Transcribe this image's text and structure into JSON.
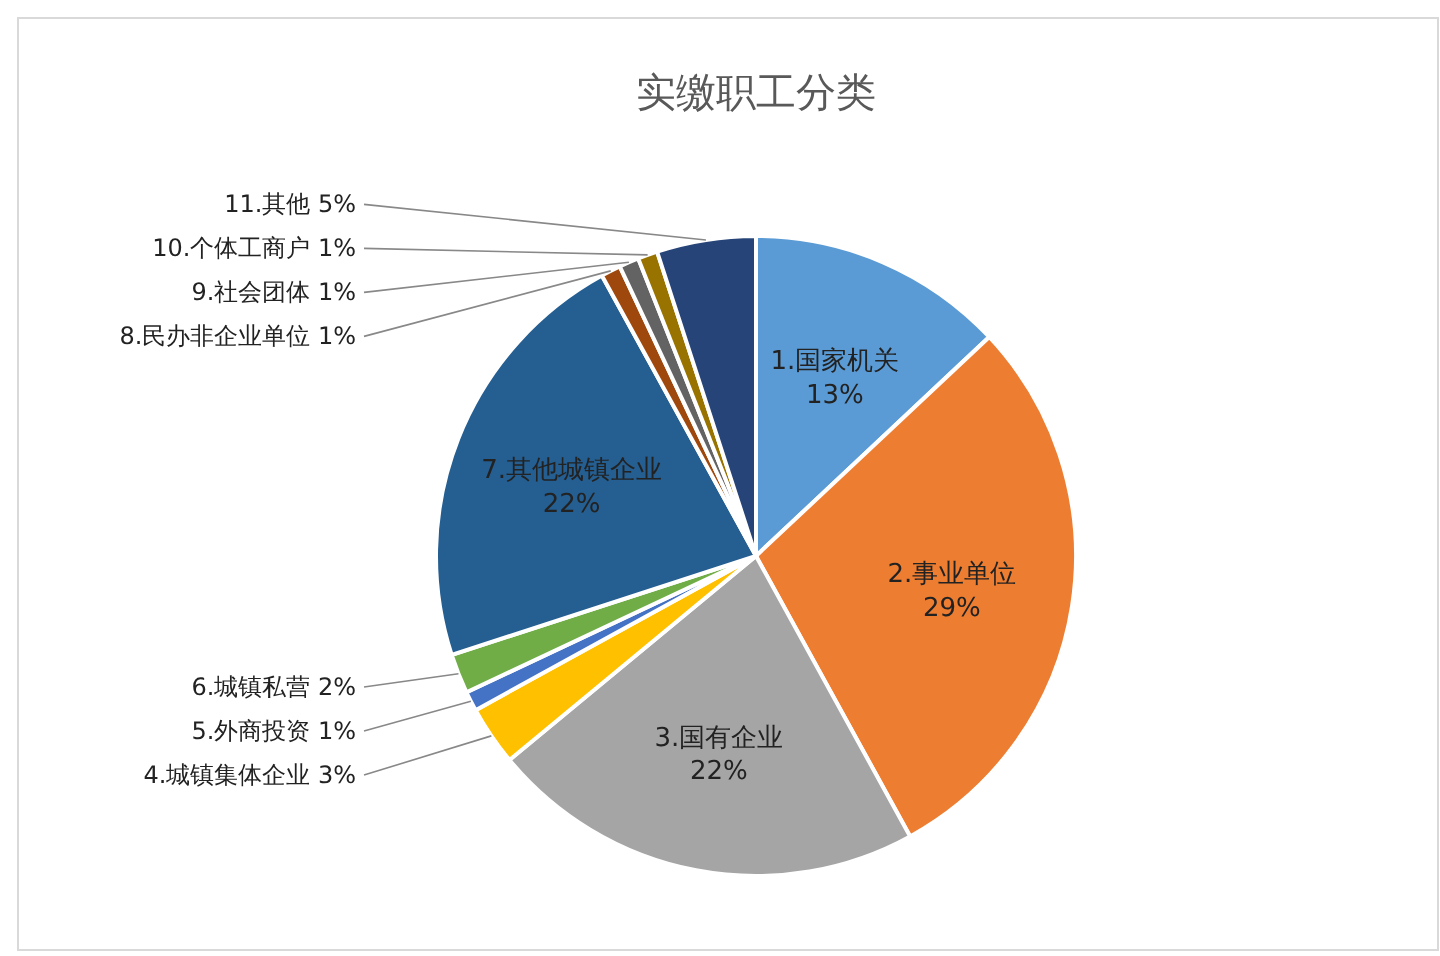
{
  "chart_data": {
    "type": "pie",
    "title": "实缴职工分类",
    "categories": [
      "1.国家机关",
      "2.事业单位",
      "3.国有企业",
      "4.城镇集体企业",
      "5.外商投资",
      "6.城镇私营",
      "7.其他城镇企业",
      "8.民办非企业单位",
      "9.社会团体",
      "10.个体工商户",
      "11.其他"
    ],
    "values": [
      13,
      29,
      22,
      3,
      1,
      2,
      22,
      1,
      1,
      1,
      5
    ],
    "colors": [
      "#5b9bd5",
      "#ed7d31",
      "#a5a5a5",
      "#ffc000",
      "#4472c4",
      "#70ad47",
      "#255e91",
      "#9e480e",
      "#636363",
      "#997300",
      "#264478"
    ],
    "value_labels": [
      "13%",
      "29%",
      "22%",
      "3%",
      "1%",
      "2%",
      "22%",
      "1%",
      "1%",
      "1%",
      "5%"
    ],
    "legend": false
  }
}
